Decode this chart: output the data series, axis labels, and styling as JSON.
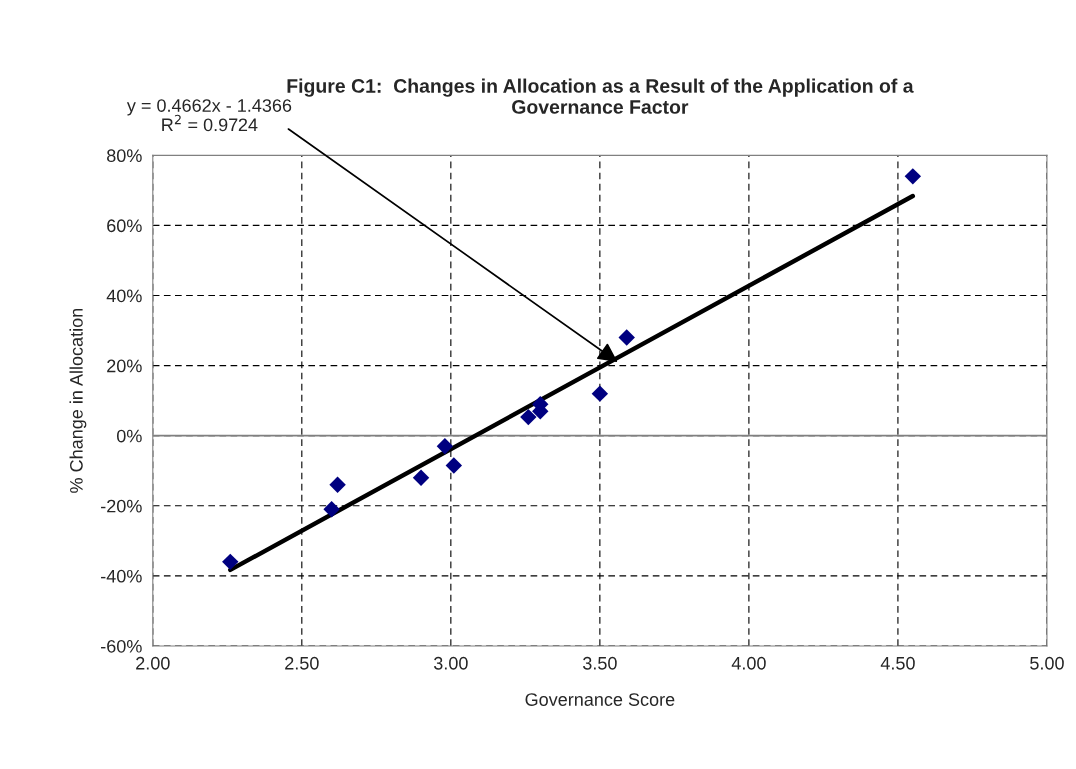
{
  "chart_data": {
    "type": "scatter",
    "title": "Figure C1:  Changes in Allocation as a Result of the Application of a\nGovernance Factor",
    "xlabel": "Governance Score",
    "ylabel": "% Change in Allocation",
    "series": [
      {
        "color": "#000080",
        "marker": "diamond",
        "x": [
          2.26,
          2.6,
          2.62,
          2.9,
          2.98,
          3.01,
          3.26,
          3.3,
          3.3,
          3.5,
          3.59,
          4.55
        ],
        "values": [
          -36,
          -21,
          -14,
          -12,
          -3,
          -8.5,
          5.3,
          7,
          9,
          12,
          28,
          74
        ]
      },
      {
        "type": "line",
        "color": "#000000",
        "marker": "none",
        "line_style": "solid",
        "x": [
          2.26,
          4.55
        ],
        "values": [
          -38.3,
          68.4
        ]
      }
    ],
    "annotations": [
      {
        "text": "y = 0.4662x - 1.4366\nR$^{2}$ = 0.9724",
        "x": 3.56,
        "y": 21
      }
    ],
    "ref_lines": [
      {
        "axis": "y",
        "value": 0,
        "color": "#808080",
        "line_style": "solid"
      }
    ],
    "xlim": [
      2,
      5
    ],
    "xticks": [
      {
        "value": 2,
        "label": "2.00"
      },
      {
        "value": 2.5,
        "label": "2.50"
      },
      {
        "value": 3,
        "label": "3.00"
      },
      {
        "value": 3.5,
        "label": "3.50"
      },
      {
        "value": 4,
        "label": "4.00"
      },
      {
        "value": 4.5,
        "label": "4.50"
      },
      {
        "value": 5,
        "label": "5.00"
      }
    ],
    "ylim": [
      -60,
      80
    ],
    "yticks": [
      {
        "value": -60,
        "label": "-60%"
      },
      {
        "value": -40,
        "label": "-40%"
      },
      {
        "value": -20,
        "label": "-20%"
      },
      {
        "value": 0,
        "label": "0%"
      },
      {
        "value": 20,
        "label": "20%"
      },
      {
        "value": 40,
        "label": "40%"
      },
      {
        "value": 60,
        "label": "60%"
      },
      {
        "value": 80,
        "label": "80%"
      }
    ],
    "grid": true,
    "legend": false
  }
}
